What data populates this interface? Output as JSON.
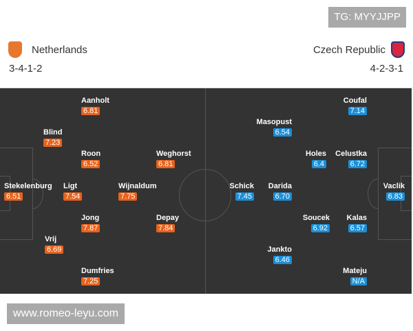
{
  "watermarks": {
    "top": "TG: MYYJJPP",
    "bottom": "www.romeo-leyu.com"
  },
  "home": {
    "name": "Netherlands",
    "formation": "3-4-1-2",
    "crest_icon": "lion-crest-icon",
    "color": "#e8621c",
    "players": [
      {
        "name": "Aanholt",
        "rating": "6.81"
      },
      {
        "name": "Blind",
        "rating": "7.23"
      },
      {
        "name": "Roon",
        "rating": "6.52"
      },
      {
        "name": "Weghorst",
        "rating": "6.81"
      },
      {
        "name": "Stekelenburg",
        "rating": "6.51"
      },
      {
        "name": "Ligt",
        "rating": "7.54"
      },
      {
        "name": "Wijnaldum",
        "rating": "7.75"
      },
      {
        "name": "Jong",
        "rating": "7.87"
      },
      {
        "name": "Depay",
        "rating": "7.84"
      },
      {
        "name": "Vrij",
        "rating": "6.69"
      },
      {
        "name": "Dumfries",
        "rating": "7.25"
      }
    ]
  },
  "away": {
    "name": "Czech Republic",
    "formation": "4-2-3-1",
    "crest_icon": "lion-shield-crest-icon",
    "color": "#1b8fd6",
    "players": [
      {
        "name": "Coufal",
        "rating": "7.14"
      },
      {
        "name": "Masopust",
        "rating": "6.54"
      },
      {
        "name": "Holes",
        "rating": "6.4"
      },
      {
        "name": "Celustka",
        "rating": "6.72"
      },
      {
        "name": "Schick",
        "rating": "7.45"
      },
      {
        "name": "Darida",
        "rating": "6.70"
      },
      {
        "name": "Vaclik",
        "rating": "6.83"
      },
      {
        "name": "Soucek",
        "rating": "6.92"
      },
      {
        "name": "Kalas",
        "rating": "6.57"
      },
      {
        "name": "Jankto",
        "rating": "6.46"
      },
      {
        "name": "Mateju",
        "rating": "N/A"
      }
    ]
  }
}
